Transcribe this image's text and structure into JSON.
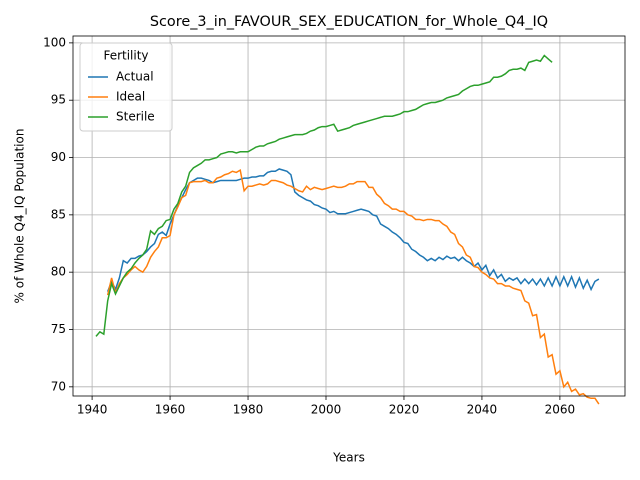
{
  "chart_data": {
    "type": "line",
    "title": "Score_3_in_FAVOUR_SEX_EDUCATION_for_Whole_Q4_IQ",
    "xlabel": "Years",
    "ylabel": "% of Whole Q4_IQ Population",
    "legend_title": "Fertility",
    "legend": "upper left",
    "grid": true,
    "xlim": [
      1935.1,
      2076.7
    ],
    "ylim": [
      69.2,
      100.6
    ],
    "xticks": [
      1940,
      1960,
      1980,
      2000,
      2020,
      2040,
      2060
    ],
    "yticks": [
      70,
      75,
      80,
      85,
      90,
      95,
      100
    ],
    "x": [
      1941,
      1942,
      1943,
      1944,
      1945,
      1946,
      1947,
      1948,
      1949,
      1950,
      1951,
      1952,
      1953,
      1954,
      1955,
      1956,
      1957,
      1958,
      1959,
      1960,
      1961,
      1962,
      1963,
      1964,
      1965,
      1966,
      1967,
      1968,
      1969,
      1970,
      1971,
      1972,
      1973,
      1974,
      1975,
      1976,
      1977,
      1978,
      1979,
      1980,
      1981,
      1982,
      1983,
      1984,
      1985,
      1986,
      1987,
      1988,
      1989,
      1990,
      1991,
      1992,
      1993,
      1994,
      1995,
      1996,
      1997,
      1998,
      1999,
      2000,
      2001,
      2002,
      2003,
      2004,
      2005,
      2006,
      2007,
      2008,
      2009,
      2010,
      2011,
      2012,
      2013,
      2014,
      2015,
      2016,
      2017,
      2018,
      2019,
      2020,
      2021,
      2022,
      2023,
      2024,
      2025,
      2026,
      2027,
      2028,
      2029,
      2030,
      2031,
      2032,
      2033,
      2034,
      2035,
      2036,
      2037,
      2038,
      2039,
      2040,
      2041,
      2042,
      2043,
      2044,
      2045,
      2046,
      2047,
      2048,
      2049,
      2050,
      2051,
      2052,
      2053,
      2054,
      2055,
      2056,
      2057,
      2058,
      2059,
      2060,
      2061,
      2062,
      2063,
      2064,
      2065,
      2066,
      2067,
      2068,
      2069,
      2070
    ],
    "series": [
      {
        "name": "Actual",
        "color": "#1f77b4",
        "values": [
          null,
          null,
          null,
          78.3,
          79.2,
          78.5,
          79.5,
          81.0,
          80.8,
          81.2,
          81.2,
          81.4,
          81.5,
          81.8,
          82.2,
          82.5,
          83.3,
          83.5,
          83.2,
          84.2,
          85.0,
          85.8,
          86.5,
          87.2,
          87.8,
          88.0,
          88.2,
          88.2,
          88.1,
          88.0,
          87.8,
          87.9,
          88.0,
          88.0,
          88.0,
          88.0,
          88.0,
          88.1,
          88.2,
          88.2,
          88.3,
          88.3,
          88.4,
          88.4,
          88.7,
          88.8,
          88.8,
          89.0,
          88.9,
          88.8,
          88.5,
          87.0,
          86.7,
          86.5,
          86.3,
          86.2,
          85.9,
          85.8,
          85.6,
          85.5,
          85.2,
          85.3,
          85.1,
          85.1,
          85.1,
          85.2,
          85.3,
          85.4,
          85.5,
          85.4,
          85.3,
          85.0,
          84.9,
          84.2,
          84.0,
          83.8,
          83.5,
          83.3,
          83.0,
          82.6,
          82.5,
          82.0,
          81.8,
          81.5,
          81.3,
          81.0,
          81.2,
          81.0,
          81.3,
          81.1,
          81.4,
          81.2,
          81.3,
          81.0,
          81.3,
          81.0,
          80.8,
          80.5,
          80.8,
          80.2,
          80.6,
          79.7,
          80.2,
          79.5,
          79.8,
          79.2,
          79.5,
          79.3,
          79.5,
          79.0,
          79.4,
          79.0,
          79.4,
          78.9,
          79.4,
          78.8,
          79.5,
          78.8,
          79.6,
          78.8,
          79.6,
          78.8,
          79.6,
          78.7,
          79.5,
          78.6,
          79.3,
          78.5,
          79.2,
          79.4
        ]
      },
      {
        "name": "Ideal",
        "color": "#ff7f0e",
        "values": [
          null,
          null,
          null,
          78.0,
          79.5,
          78.2,
          79.0,
          79.5,
          79.8,
          80.2,
          80.5,
          80.2,
          80.0,
          80.5,
          81.3,
          81.8,
          82.2,
          83.0,
          83.0,
          83.2,
          85.0,
          85.7,
          86.5,
          86.7,
          87.8,
          87.9,
          87.9,
          87.9,
          88.0,
          87.8,
          87.8,
          88.2,
          88.3,
          88.5,
          88.6,
          88.8,
          88.7,
          88.9,
          87.1,
          87.5,
          87.5,
          87.6,
          87.7,
          87.6,
          87.7,
          88.0,
          88.0,
          87.9,
          87.8,
          87.6,
          87.5,
          87.3,
          87.1,
          87.0,
          87.5,
          87.2,
          87.4,
          87.3,
          87.2,
          87.3,
          87.4,
          87.5,
          87.4,
          87.4,
          87.5,
          87.7,
          87.7,
          87.9,
          87.9,
          87.9,
          87.4,
          87.4,
          86.8,
          86.5,
          86.0,
          85.8,
          85.5,
          85.5,
          85.3,
          85.3,
          85.0,
          84.9,
          84.6,
          84.6,
          84.5,
          84.6,
          84.6,
          84.5,
          84.5,
          84.2,
          84.0,
          83.5,
          83.3,
          82.5,
          82.2,
          81.5,
          81.3,
          80.5,
          80.4,
          80.0,
          79.8,
          79.5,
          79.4,
          79.0,
          79.0,
          78.8,
          78.8,
          78.6,
          78.5,
          78.4,
          77.5,
          77.3,
          76.2,
          76.3,
          74.3,
          74.6,
          72.6,
          72.8,
          71.1,
          71.4,
          70.0,
          70.4,
          69.6,
          69.8,
          69.3,
          69.4,
          69.1,
          69.0,
          69.0,
          68.5
        ]
      },
      {
        "name": "Sterile",
        "color": "#2ca02c",
        "values": [
          74.4,
          74.8,
          74.6,
          77.5,
          79.0,
          78.1,
          78.8,
          79.5,
          80.0,
          80.3,
          80.8,
          81.2,
          81.5,
          82.0,
          83.6,
          83.3,
          83.8,
          84.0,
          84.5,
          84.6,
          85.5,
          86.0,
          87.0,
          87.5,
          88.7,
          89.1,
          89.3,
          89.5,
          89.8,
          89.8,
          89.9,
          90.0,
          90.3,
          90.4,
          90.5,
          90.5,
          90.4,
          90.5,
          90.5,
          90.5,
          90.7,
          90.9,
          91.0,
          91.0,
          91.2,
          91.3,
          91.4,
          91.6,
          91.7,
          91.8,
          91.9,
          92.0,
          92.0,
          92.0,
          92.1,
          92.3,
          92.4,
          92.6,
          92.7,
          92.7,
          92.8,
          92.9,
          92.3,
          92.4,
          92.5,
          92.6,
          92.8,
          92.9,
          93.0,
          93.1,
          93.2,
          93.3,
          93.4,
          93.5,
          93.6,
          93.6,
          93.6,
          93.7,
          93.8,
          94.0,
          94.0,
          94.1,
          94.2,
          94.4,
          94.6,
          94.7,
          94.8,
          94.8,
          94.9,
          95.0,
          95.2,
          95.3,
          95.4,
          95.5,
          95.8,
          96.0,
          96.2,
          96.3,
          96.3,
          96.4,
          96.5,
          96.6,
          97.0,
          97.0,
          97.1,
          97.3,
          97.6,
          97.7,
          97.7,
          97.8,
          97.6,
          98.3,
          98.4,
          98.5,
          98.4,
          98.9,
          98.6,
          98.3,
          null,
          null,
          null,
          null,
          null,
          null,
          null,
          null,
          null,
          null,
          null,
          null
        ]
      }
    ]
  }
}
